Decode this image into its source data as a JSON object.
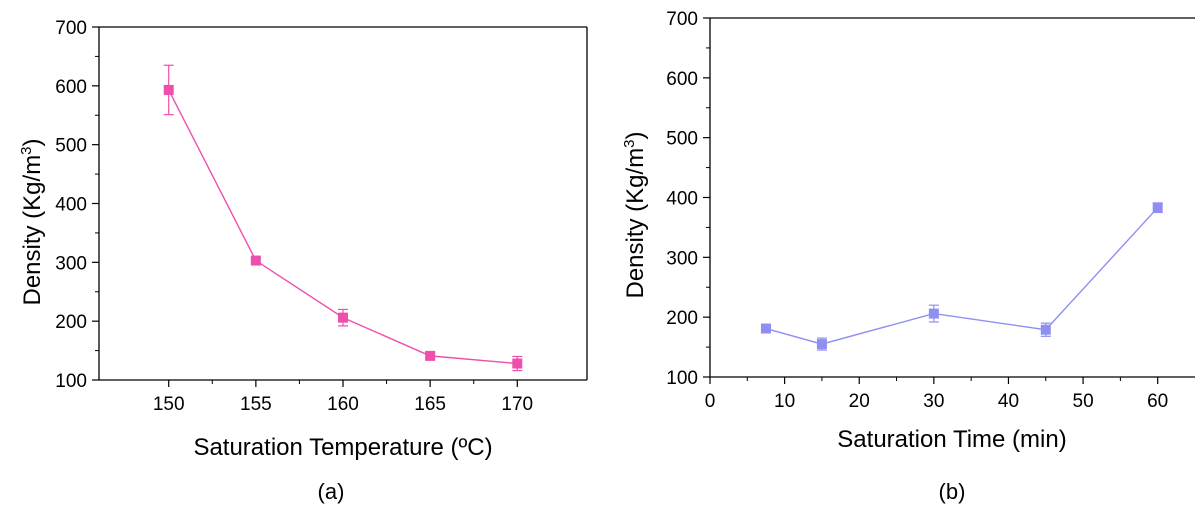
{
  "chart_data": [
    {
      "type": "line",
      "panel_label": "(a)",
      "xlabel": "Saturation Temperature (ºC)",
      "ylabel_main": "Density (Kg/m",
      "ylabel_sup": "3",
      "ylabel_close": ")",
      "xlim": [
        146,
        174
      ],
      "ylim": [
        100,
        700
      ],
      "xticks": [
        150,
        155,
        160,
        165,
        170
      ],
      "yticks": [
        100,
        200,
        300,
        400,
        500,
        600,
        700
      ],
      "color": "#ee4fad",
      "frame": "box",
      "grid": false,
      "series": [
        {
          "x": [
            150,
            155,
            160,
            165,
            170
          ],
          "y": [
            593,
            303,
            206,
            141,
            128
          ],
          "err": [
            42,
            4,
            14,
            5,
            12
          ]
        }
      ]
    },
    {
      "type": "line",
      "panel_label": "(b)",
      "xlabel": "Saturation Time (min)",
      "ylabel_main": "Density (Kg/m",
      "ylabel_sup": "3",
      "ylabel_close": ")",
      "xlim": [
        0,
        65
      ],
      "ylim": [
        100,
        700
      ],
      "xticks": [
        0,
        10,
        20,
        30,
        40,
        50,
        60
      ],
      "yticks": [
        100,
        200,
        300,
        400,
        500,
        600,
        700
      ],
      "color": "#8f8ff2",
      "frame": "top-left-bottom",
      "grid": false,
      "series": [
        {
          "x": [
            7.5,
            15,
            30,
            45,
            60
          ],
          "y": [
            181,
            155,
            206,
            179,
            383
          ],
          "err": [
            4,
            10,
            14,
            11,
            8
          ]
        }
      ]
    }
  ]
}
